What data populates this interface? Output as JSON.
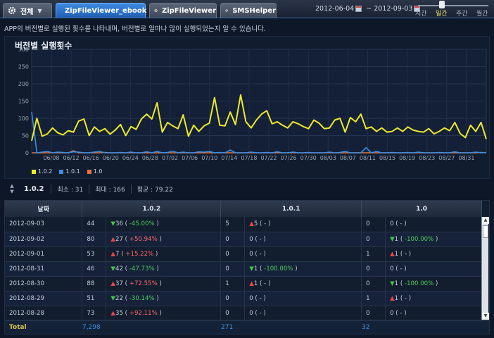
{
  "tabs": [
    {
      "label": "전체",
      "has_dropdown": true,
      "active": false
    },
    {
      "label": "ZipFileViewer_ebook",
      "active": true
    },
    {
      "label": "ZipFileViewer",
      "active": false
    },
    {
      "label": "SMSHelper",
      "active": false
    }
  ],
  "date_range": {
    "start": "2012-06-04",
    "separator": "~",
    "end": "2012-09-03"
  },
  "period": {
    "options": [
      "시간",
      "일간",
      "주간",
      "월간"
    ],
    "selected": "일간"
  },
  "description": "APP의 버전별로 실행된 횟수를 나타내며, 버전별로 얼마나 많이 실행되었는지 알 수 있습니다.",
  "chart_data": {
    "type": "line",
    "title": "버전별 실행횟수",
    "ylim": [
      0,
      300
    ],
    "yticks": [
      0,
      50,
      100,
      150,
      200,
      250,
      300
    ],
    "xtick_labels": [
      "06/08",
      "06/12",
      "06/16",
      "06/20",
      "06/24",
      "06/28",
      "07/02",
      "07/06",
      "07/10",
      "07/14",
      "07/18",
      "07/22",
      "07/26",
      "07/30",
      "08/03",
      "08/07",
      "08/11",
      "08/15",
      "08/19",
      "08/23",
      "08/27",
      "08/31"
    ],
    "legend_position": "bottom-left",
    "grid": true,
    "series": [
      {
        "name": "1.0.2",
        "color": "#f0ea2a",
        "values": [
          35,
          100,
          48,
          55,
          72,
          58,
          52,
          64,
          60,
          92,
          98,
          50,
          75,
          62,
          70,
          54,
          66,
          82,
          50,
          76,
          68,
          98,
          112,
          98,
          145,
          60,
          88,
          78,
          70,
          110,
          48,
          80,
          62,
          78,
          86,
          160,
          80,
          78,
          118,
          82,
          168,
          90,
          72,
          95,
          112,
          122,
          84,
          90,
          80,
          72,
          90,
          84,
          76,
          70,
          95,
          86,
          70,
          72,
          95,
          100,
          60,
          102,
          90,
          112,
          70,
          75,
          62,
          72,
          60,
          62,
          72,
          62,
          75,
          66,
          62,
          60,
          70,
          55,
          62,
          72,
          64,
          88,
          56,
          44,
          80,
          62,
          88,
          40
        ]
      },
      {
        "name": "1.0.1",
        "color": "#3b8fe6",
        "values": [
          118,
          0,
          2,
          4,
          0,
          2,
          1,
          0,
          3,
          2,
          0,
          0,
          2,
          4,
          0,
          0,
          0,
          1,
          0,
          2,
          0,
          0,
          3,
          0,
          4,
          0,
          1,
          5,
          0,
          2,
          0,
          0,
          3,
          2,
          4,
          0,
          1,
          0,
          8,
          0,
          0,
          0,
          2,
          0,
          0,
          1,
          0,
          3,
          0,
          0,
          2,
          0,
          0,
          1,
          0,
          0,
          0,
          2,
          0,
          1,
          4,
          0,
          0,
          0,
          15,
          0,
          4,
          0,
          0,
          1,
          0,
          0,
          1,
          0,
          2,
          0,
          0,
          0,
          1,
          0,
          0,
          3,
          0,
          0,
          0,
          2,
          0,
          1
        ]
      },
      {
        "name": "1.0",
        "color": "#e8753a",
        "values": [
          0,
          0,
          0,
          0,
          0,
          0,
          0,
          0,
          6,
          0,
          0,
          0,
          0,
          0,
          1,
          0,
          0,
          0,
          0,
          0,
          0,
          0,
          0,
          0,
          0,
          0,
          0,
          0,
          0,
          0,
          0,
          0,
          0,
          0,
          0,
          0,
          0,
          0,
          0,
          0,
          0,
          0,
          0,
          0,
          0,
          0,
          0,
          0,
          0,
          0,
          0,
          0,
          0,
          0,
          0,
          0,
          0,
          0,
          0,
          0,
          0,
          0,
          0,
          0,
          0,
          0,
          0,
          0,
          0,
          0,
          0,
          0,
          0,
          0,
          0,
          0,
          0,
          0,
          0,
          0,
          0,
          0,
          0,
          0,
          0,
          0,
          1,
          0
        ]
      }
    ]
  },
  "version_bar": {
    "version": "1.0.2",
    "min_label": "최소 : 31",
    "max_label": "최대 : 166",
    "avg_label": "평균 : 79.22"
  },
  "table": {
    "headers": [
      "날짜",
      "1.0.2",
      "1.0.1",
      "1.0"
    ],
    "rows": [
      {
        "date": "2012-09-03",
        "v102": "44",
        "d102_dir": "down",
        "d102_n": "36",
        "d102_p": "-45.00%",
        "v101": "5",
        "d101_dir": "up",
        "d101_n": "5",
        "d101_p": "-",
        "v10": "0",
        "d10_dir": "none",
        "d10_n": "0",
        "d10_p": "-"
      },
      {
        "date": "2012-09-02",
        "v102": "80",
        "d102_dir": "up",
        "d102_n": "27",
        "d102_p": "+50.94%",
        "v101": "0",
        "d101_dir": "none",
        "d101_n": "0",
        "d101_p": "-",
        "v10": "0",
        "d10_dir": "down",
        "d10_n": "1",
        "d10_p": "-100.00%"
      },
      {
        "date": "2012-09-01",
        "v102": "53",
        "d102_dir": "up",
        "d102_n": "7",
        "d102_p": "+15.22%",
        "v101": "0",
        "d101_dir": "none",
        "d101_n": "0",
        "d101_p": "-",
        "v10": "1",
        "d10_dir": "up",
        "d10_n": "1",
        "d10_p": "-"
      },
      {
        "date": "2012-08-31",
        "v102": "46",
        "d102_dir": "down",
        "d102_n": "42",
        "d102_p": "-47.73%",
        "v101": "0",
        "d101_dir": "down",
        "d101_n": "1",
        "d101_p": "-100.00%",
        "v10": "0",
        "d10_dir": "none",
        "d10_n": "0",
        "d10_p": "-"
      },
      {
        "date": "2012-08-30",
        "v102": "88",
        "d102_dir": "up",
        "d102_n": "37",
        "d102_p": "+72.55%",
        "v101": "1",
        "d101_dir": "up",
        "d101_n": "1",
        "d101_p": "-",
        "v10": "0",
        "d10_dir": "down",
        "d10_n": "1",
        "d10_p": "-100.00%"
      },
      {
        "date": "2012-08-29",
        "v102": "51",
        "d102_dir": "down",
        "d102_n": "22",
        "d102_p": "-30.14%",
        "v101": "0",
        "d101_dir": "none",
        "d101_n": "0",
        "d101_p": "-",
        "v10": "1",
        "d10_dir": "up",
        "d10_n": "1",
        "d10_p": "-"
      },
      {
        "date": "2012-08-28",
        "v102": "73",
        "d102_dir": "up",
        "d102_n": "35",
        "d102_p": "+92.11%",
        "v101": "0",
        "d101_dir": "none",
        "d101_n": "0",
        "d101_p": "-",
        "v10": "0",
        "d10_dir": "none",
        "d10_n": "0",
        "d10_p": "-"
      }
    ]
  },
  "totals": {
    "label": "Total",
    "v102": "7,298",
    "v101": "271",
    "v10": "32"
  }
}
